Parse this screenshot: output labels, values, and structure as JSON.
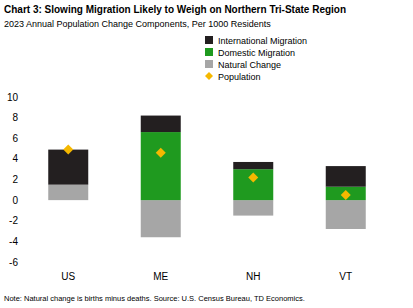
{
  "chart_data": {
    "type": "bar",
    "stacked": true,
    "title": "Chart 3: Slowing Migration Likely to Weigh on Northern Tri-State Region",
    "subtitle": "2023 Annual Population Change Components, Per 1000 Residents",
    "note": "Note: Natural change is births minus deaths. Source: U.S. Census Bureau, TD Economics.",
    "categories": [
      "US",
      "ME",
      "NH",
      "VT"
    ],
    "series": [
      {
        "name": "International Migration",
        "color": "#231f20",
        "values": [
          3.4,
          1.6,
          0.7,
          2.0
        ]
      },
      {
        "name": "Domestic Migration",
        "color": "#1f9a1f",
        "values": [
          0,
          6.6,
          3.0,
          1.3
        ]
      },
      {
        "name": "Natural Change",
        "color": "#a6a6a6",
        "values": [
          1.5,
          -3.6,
          -1.5,
          -2.8
        ]
      },
      {
        "name": "Population",
        "color": "#f5b800",
        "type": "scatter",
        "marker": "diamond",
        "values": [
          4.9,
          4.6,
          2.2,
          0.5
        ]
      }
    ],
    "ylim": [
      -6,
      10
    ],
    "yticks": [
      -6,
      -4,
      -2,
      0,
      2,
      4,
      6,
      8,
      10
    ],
    "grid": false,
    "legend": "upper right"
  }
}
